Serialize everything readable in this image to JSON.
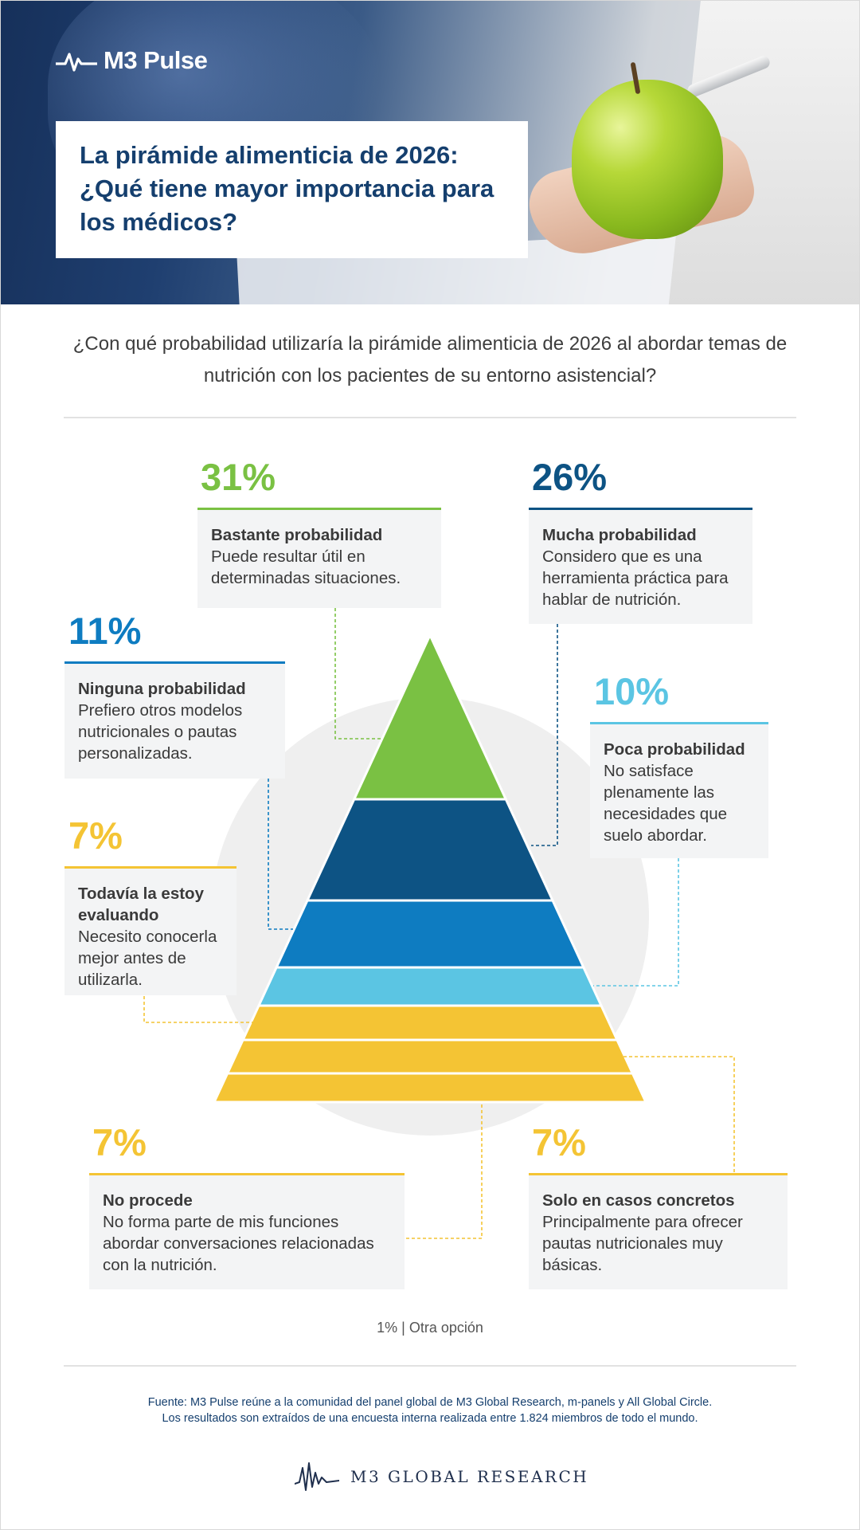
{
  "header": {
    "brand": "M3 Pulse",
    "title": "La pirámide alimenticia de 2026: ¿Qué tiene mayor importancia para los médicos?"
  },
  "question": "¿Con qué probabilidad utilizaría la pirámide alimenticia de 2026 al abordar temas de nutrición con los pacientes de su entorno asistencial?",
  "chart_data": {
    "type": "pyramid",
    "segments": [
      {
        "percent": "31%",
        "value": 31,
        "label": "Bastante probabilidad",
        "description": "Puede resultar útil en determinadas situaciones.",
        "color": "#7ac143"
      },
      {
        "percent": "26%",
        "value": 26,
        "label": "Mucha probabilidad",
        "description": "Considero que es una herramienta práctica para hablar de nutrición.",
        "color": "#0d5384"
      },
      {
        "percent": "11%",
        "value": 11,
        "label": "Ninguna probabilidad",
        "description": "Prefiero otros modelos nutricionales o pautas personalizadas.",
        "color": "#0e7cc1"
      },
      {
        "percent": "10%",
        "value": 10,
        "label": "Poca probabilidad",
        "description": "No satisface plenamente las necesidades que suelo abordar.",
        "color": "#5bc5e3"
      },
      {
        "percent": "7%",
        "value": 7,
        "label": "Todavía la estoy evaluando",
        "description": "Necesito conocerla mejor antes de utilizarla.",
        "color": "#f4c434"
      },
      {
        "percent": "7%",
        "value": 7,
        "label": "Solo en casos concretos",
        "description": "Principalmente para ofrecer pautas nutricionales muy básicas.",
        "color": "#f4c434"
      },
      {
        "percent": "7%",
        "value": 7,
        "label": "No procede",
        "description": "No forma parte de mis funciones abordar conversaciones relacionadas con la nutrición.",
        "color": "#f4c434"
      }
    ],
    "other": "1% | Otra opción"
  },
  "source": {
    "line1": "Fuente: M3 Pulse reúne a la comunidad del panel global de M3 Global Research, m-panels y All Global Circle.",
    "line2": "Los resultados son extraídos de una encuesta interna realizada entre 1.824 miembros de todo el mundo."
  },
  "footer": {
    "brand": "M3  GLOBAL RESEARCH"
  }
}
